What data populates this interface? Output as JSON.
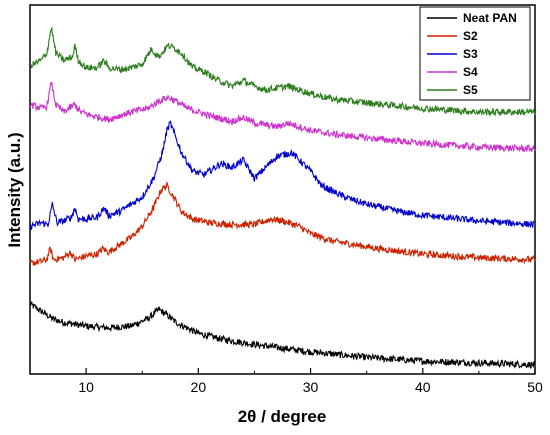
{
  "chart_data": {
    "type": "line",
    "title": "",
    "xlabel": "2θ / degree",
    "ylabel": "Intensity (a.u.)",
    "xlim": [
      5,
      50
    ],
    "ylim": [
      0,
      100
    ],
    "x_ticks": [
      10,
      20,
      30,
      40,
      50
    ],
    "x_tick_labels": [
      "10",
      "20",
      "30",
      "40",
      "50"
    ],
    "y_ticks_shown": false,
    "legend_position": "top-right",
    "series": [
      {
        "name": "Neat PAN",
        "color": "#000000",
        "points": [
          [
            5,
            19
          ],
          [
            6,
            17
          ],
          [
            7,
            15
          ],
          [
            8,
            14
          ],
          [
            10,
            13
          ],
          [
            12,
            12.5
          ],
          [
            14,
            13
          ],
          [
            15.5,
            15
          ],
          [
            16.5,
            17.5
          ],
          [
            17.2,
            16
          ],
          [
            18,
            14
          ],
          [
            20,
            11
          ],
          [
            22,
            9.5
          ],
          [
            25,
            8
          ],
          [
            30,
            6
          ],
          [
            35,
            4.5
          ],
          [
            40,
            3.5
          ],
          [
            45,
            3
          ],
          [
            50,
            2.5
          ]
        ],
        "peaks": [
          16.8
        ]
      },
      {
        "name": "S2",
        "color": "#cc2200",
        "points": [
          [
            5,
            30
          ],
          [
            6,
            30.5
          ],
          [
            6.5,
            31
          ],
          [
            6.8,
            34
          ],
          [
            7.1,
            31
          ],
          [
            8,
            31.5
          ],
          [
            8.6,
            33
          ],
          [
            9,
            31
          ],
          [
            10,
            32
          ],
          [
            11,
            32.5
          ],
          [
            11.5,
            34
          ],
          [
            12,
            33
          ],
          [
            13,
            35
          ],
          [
            14,
            37
          ],
          [
            15,
            40
          ],
          [
            16,
            45
          ],
          [
            16.7,
            50
          ],
          [
            17.2,
            51
          ],
          [
            17.8,
            48
          ],
          [
            18.5,
            44
          ],
          [
            19.5,
            42
          ],
          [
            21,
            41
          ],
          [
            23,
            40.5
          ],
          [
            25,
            40.5
          ],
          [
            26.5,
            42
          ],
          [
            27.5,
            41.5
          ],
          [
            29,
            40
          ],
          [
            30,
            38
          ],
          [
            32,
            36
          ],
          [
            34,
            35
          ],
          [
            36,
            34
          ],
          [
            40,
            32.5
          ],
          [
            45,
            31.5
          ],
          [
            50,
            31
          ]
        ]
      },
      {
        "name": "S3",
        "color": "#0000cc",
        "points": [
          [
            5,
            40
          ],
          [
            6,
            41
          ],
          [
            6.6,
            40.5
          ],
          [
            7,
            46
          ],
          [
            7.4,
            41
          ],
          [
            8,
            41.5
          ],
          [
            8.7,
            42.5
          ],
          [
            9,
            45
          ],
          [
            9.3,
            42
          ],
          [
            10,
            42
          ],
          [
            11,
            42.5
          ],
          [
            11.6,
            45
          ],
          [
            12,
            43
          ],
          [
            13,
            44
          ],
          [
            14,
            46
          ],
          [
            15,
            48
          ],
          [
            16,
            53
          ],
          [
            16.8,
            60
          ],
          [
            17.2,
            66
          ],
          [
            17.5,
            68
          ],
          [
            18,
            64
          ],
          [
            18.5,
            60
          ],
          [
            19.5,
            55
          ],
          [
            20.5,
            54
          ],
          [
            22,
            57
          ],
          [
            23,
            56
          ],
          [
            24,
            58
          ],
          [
            25,
            53
          ],
          [
            26,
            56
          ],
          [
            27,
            59
          ],
          [
            28.3,
            60
          ],
          [
            29,
            58
          ],
          [
            30,
            55
          ],
          [
            31,
            51
          ],
          [
            33,
            48
          ],
          [
            35,
            46
          ],
          [
            38,
            44
          ],
          [
            40,
            43
          ],
          [
            45,
            41.5
          ],
          [
            50,
            40.5
          ]
        ]
      },
      {
        "name": "S4",
        "color": "#cc33cc",
        "points": [
          [
            5,
            73
          ],
          [
            6,
            72
          ],
          [
            6.5,
            72.5
          ],
          [
            6.9,
            79
          ],
          [
            7.3,
            73
          ],
          [
            8,
            71
          ],
          [
            9,
            73
          ],
          [
            9.5,
            71
          ],
          [
            10.5,
            70
          ],
          [
            12,
            69
          ],
          [
            13,
            70
          ],
          [
            14,
            71
          ],
          [
            15.5,
            72
          ],
          [
            16.5,
            74
          ],
          [
            17.3,
            75
          ],
          [
            18,
            74
          ],
          [
            19,
            72
          ],
          [
            20,
            71
          ],
          [
            21,
            70
          ],
          [
            23,
            68.5
          ],
          [
            24,
            69.5
          ],
          [
            25,
            68
          ],
          [
            26,
            67.5
          ],
          [
            27,
            67
          ],
          [
            28,
            68
          ],
          [
            29,
            67
          ],
          [
            30,
            66
          ],
          [
            32,
            65
          ],
          [
            35,
            64
          ],
          [
            40,
            62.5
          ],
          [
            45,
            61.5
          ],
          [
            50,
            61
          ]
        ]
      },
      {
        "name": "S5",
        "color": "#2e7d1e",
        "points": [
          [
            5,
            83.5
          ],
          [
            6,
            85
          ],
          [
            6.5,
            87
          ],
          [
            6.9,
            94
          ],
          [
            7.3,
            87
          ],
          [
            8,
            85
          ],
          [
            8.8,
            86
          ],
          [
            9,
            89
          ],
          [
            9.3,
            85
          ],
          [
            10,
            83
          ],
          [
            11,
            83
          ],
          [
            11.6,
            85
          ],
          [
            12,
            83
          ],
          [
            13,
            82.5
          ],
          [
            14,
            83
          ],
          [
            15,
            84
          ],
          [
            15.8,
            88
          ],
          [
            16.5,
            86
          ],
          [
            17.3,
            89
          ],
          [
            17.8,
            88.5
          ],
          [
            18.5,
            87
          ],
          [
            19.5,
            83
          ],
          [
            20.5,
            82
          ],
          [
            21.5,
            80
          ],
          [
            23,
            78
          ],
          [
            24,
            79.5
          ],
          [
            25,
            78
          ],
          [
            26,
            77
          ],
          [
            27,
            77.5
          ],
          [
            28,
            78
          ],
          [
            29,
            77
          ],
          [
            30,
            76
          ],
          [
            32,
            74.5
          ],
          [
            35,
            73.5
          ],
          [
            40,
            72
          ],
          [
            45,
            71
          ],
          [
            50,
            71
          ]
        ]
      }
    ]
  }
}
